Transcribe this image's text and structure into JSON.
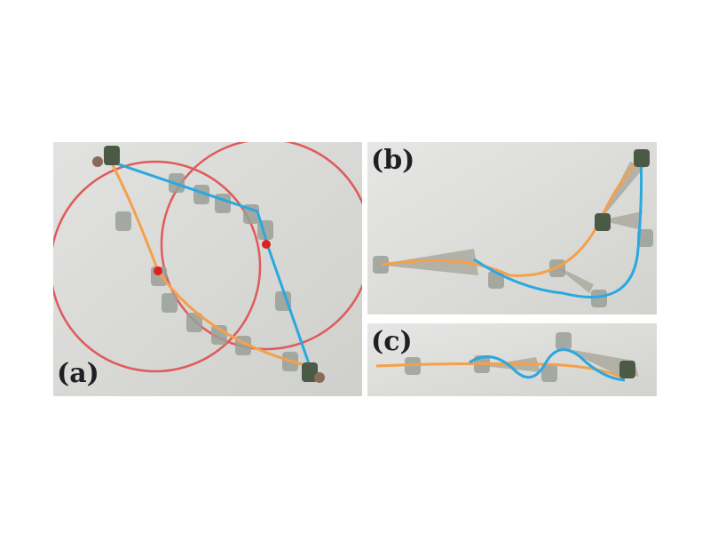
{
  "panels": {
    "a": {
      "label": "(a)"
    },
    "b": {
      "label": "(b)"
    },
    "c": {
      "label": "(c)"
    }
  },
  "colors": {
    "background": "#dcdcda",
    "orange_path": "#f5a04a",
    "blue_path": "#2aa8e0",
    "circle": "#e05a5a",
    "center_marker": "#e02020",
    "sensor_cone": "#a8a89c",
    "robot": "#4a5a44"
  },
  "icons": {
    "robot": "robot-icon",
    "sensor_cone": "cone-icon"
  }
}
